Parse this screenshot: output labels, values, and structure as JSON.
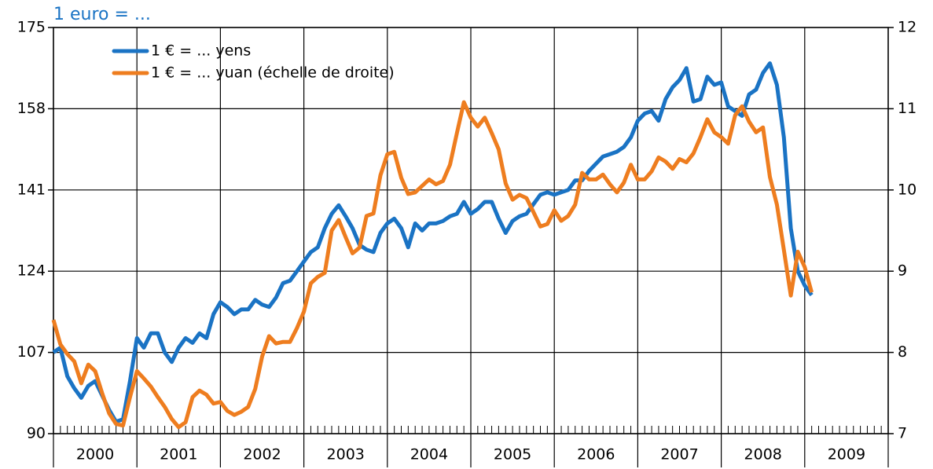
{
  "chart_data": {
    "type": "line",
    "title": "1 euro = ...",
    "x_labels": [
      "2000",
      "2001",
      "2002",
      "2003",
      "2004",
      "2005",
      "2006",
      "2007",
      "2008",
      "2009"
    ],
    "x": [
      2000,
      2000.083,
      2000.167,
      2000.25,
      2000.333,
      2000.417,
      2000.5,
      2000.583,
      2000.667,
      2000.75,
      2000.833,
      2000.917,
      2001,
      2001.083,
      2001.167,
      2001.25,
      2001.333,
      2001.417,
      2001.5,
      2001.583,
      2001.667,
      2001.75,
      2001.833,
      2001.917,
      2002,
      2002.083,
      2002.167,
      2002.25,
      2002.333,
      2002.417,
      2002.5,
      2002.583,
      2002.667,
      2002.75,
      2002.833,
      2002.917,
      2003,
      2003.083,
      2003.167,
      2003.25,
      2003.333,
      2003.417,
      2003.5,
      2003.583,
      2003.667,
      2003.75,
      2003.833,
      2003.917,
      2004,
      2004.083,
      2004.167,
      2004.25,
      2004.333,
      2004.417,
      2004.5,
      2004.583,
      2004.667,
      2004.75,
      2004.833,
      2004.917,
      2005,
      2005.083,
      2005.167,
      2005.25,
      2005.333,
      2005.417,
      2005.5,
      2005.583,
      2005.667,
      2005.75,
      2005.833,
      2005.917,
      2006,
      2006.083,
      2006.167,
      2006.25,
      2006.333,
      2006.417,
      2006.5,
      2006.583,
      2006.667,
      2006.75,
      2006.833,
      2006.917,
      2007,
      2007.083,
      2007.167,
      2007.25,
      2007.333,
      2007.417,
      2007.5,
      2007.583,
      2007.667,
      2007.75,
      2007.833,
      2007.917,
      2008,
      2008.083,
      2008.167,
      2008.25,
      2008.333,
      2008.417,
      2008.5,
      2008.583,
      2008.667,
      2008.75,
      2008.833,
      2008.917,
      2009,
      2009.083
    ],
    "series": [
      {
        "name": "1 € = ... yens",
        "color": "#1a73c4",
        "values": [
          107,
          108,
          102,
          99.5,
          97.5,
          100,
          101,
          98,
          95,
          92.5,
          93,
          101,
          110,
          108,
          111,
          111,
          107,
          105,
          108,
          110,
          109,
          111,
          110,
          115,
          117.5,
          116.5,
          115,
          116,
          116,
          118,
          117,
          116.5,
          118.5,
          121.5,
          122,
          124,
          126,
          128,
          129,
          133,
          136,
          137.8,
          135.5,
          133,
          129.5,
          128.5,
          128,
          132,
          134,
          135,
          133,
          129,
          134,
          132.5,
          134,
          134,
          134.5,
          135.5,
          136,
          138.5,
          136,
          137,
          138.5,
          138.5,
          135,
          132,
          134.5,
          135.5,
          136,
          138,
          140,
          140.5,
          140,
          140.5,
          141,
          143,
          143,
          145,
          146.5,
          148,
          148.5,
          149,
          150,
          152,
          155.5,
          157,
          157.5,
          155.5,
          160,
          162.5,
          164,
          166.5,
          159.5,
          160,
          164.7,
          163,
          163.5,
          158.5,
          157.5,
          156.5,
          161,
          162,
          165.5,
          167.5,
          163,
          152,
          133,
          124,
          121,
          119
        ]
      },
      {
        "name": "1 € = ... yuan (échelle de droite)",
        "color": "#ee7d1f",
        "axis": "y2",
        "values": [
          8.4,
          8.1,
          7.98,
          7.89,
          7.62,
          7.85,
          7.77,
          7.5,
          7.25,
          7.12,
          7.1,
          7.45,
          7.77,
          7.68,
          7.58,
          7.45,
          7.33,
          7.18,
          7.08,
          7.14,
          7.45,
          7.53,
          7.48,
          7.37,
          7.39,
          7.28,
          7.23,
          7.27,
          7.33,
          7.55,
          7.95,
          8.2,
          8.11,
          8.13,
          8.13,
          8.3,
          8.5,
          8.85,
          8.93,
          8.98,
          9.5,
          9.63,
          9.42,
          9.22,
          9.29,
          9.68,
          9.71,
          10.18,
          10.44,
          10.47,
          10.15,
          9.95,
          9.97,
          10.05,
          10.13,
          10.07,
          10.11,
          10.31,
          10.7,
          11.08,
          10.89,
          10.78,
          10.89,
          10.7,
          10.5,
          10.08,
          9.88,
          9.94,
          9.9,
          9.73,
          9.55,
          9.58,
          9.75,
          9.62,
          9.68,
          9.82,
          10.21,
          10.13,
          10.13,
          10.19,
          10.07,
          9.97,
          10.09,
          10.31,
          10.13,
          10.13,
          10.23,
          10.4,
          10.35,
          10.26,
          10.38,
          10.34,
          10.45,
          10.65,
          10.87,
          10.71,
          10.65,
          10.57,
          10.92,
          11.03,
          10.84,
          10.71,
          10.77,
          10.16,
          9.82,
          9.26,
          8.7,
          9.24,
          9.05,
          8.74
        ]
      }
    ],
    "xlim": [
      2000,
      2010
    ],
    "xticks": [
      2000,
      2001,
      2002,
      2003,
      2004,
      2005,
      2006,
      2007,
      2008,
      2009,
      2010
    ],
    "ylim": [
      90,
      175
    ],
    "yticks": [
      90,
      107,
      124,
      141,
      158,
      175
    ],
    "y2lim": [
      7,
      12
    ],
    "y2ticks": [
      7,
      8,
      9,
      10,
      11,
      12
    ],
    "grid": true,
    "legend": "upper left"
  }
}
